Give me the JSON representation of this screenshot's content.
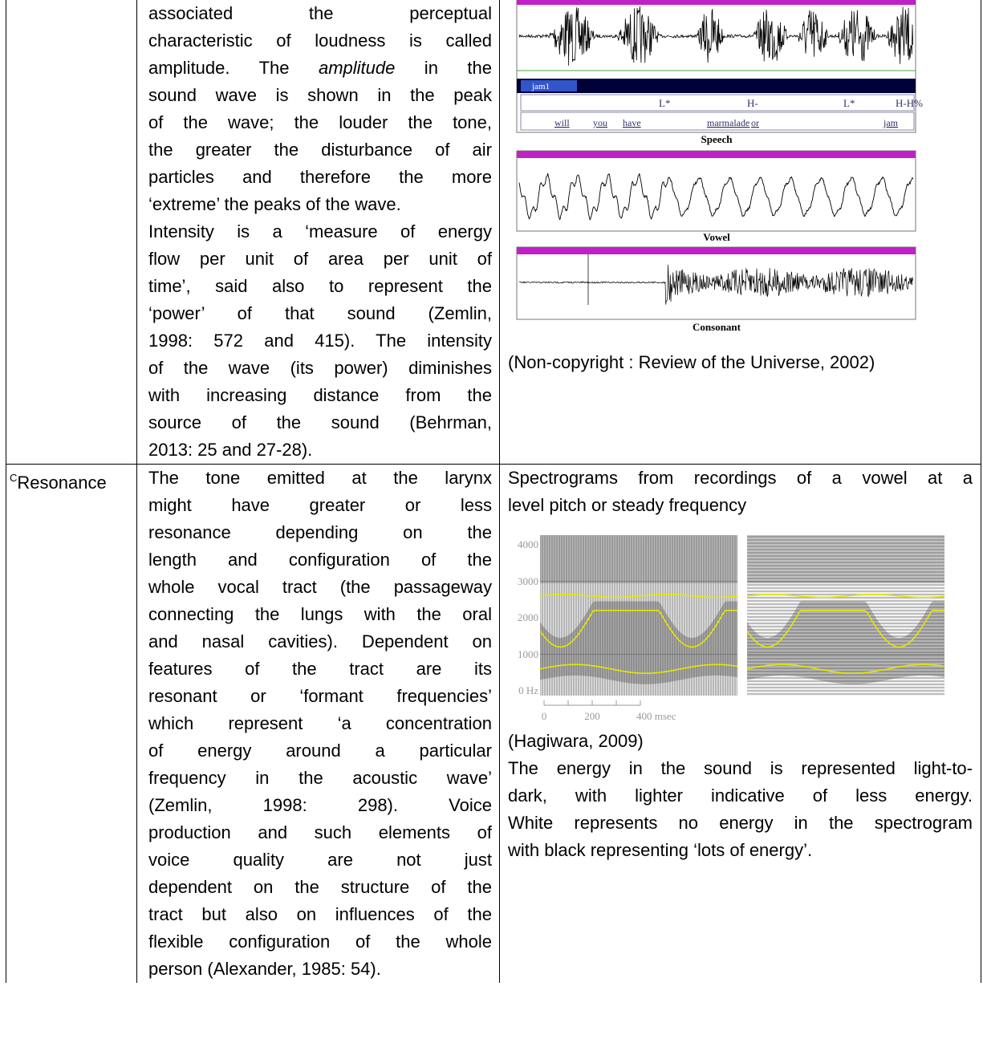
{
  "table": {
    "rows": [
      {
        "description": {
          "paragraphs": [
            [
              "associated the perceptual",
              "characteristic of loudness is called",
              [
                "amplitude. The ",
                "amplitude",
                " in the"
              ],
              "sound wave is shown in the peak",
              "of the wave; the louder the tone,",
              "the greater the disturbance of air",
              "particles and therefore the more",
              "‘extreme’ the peaks of the wave."
            ],
            [
              "Intensity is a ‘measure of energy",
              "flow per unit of area per unit of",
              "time’, said also to represent the",
              "‘power’ of that sound (Zemlin,",
              "1998: 572 and 415). The intensity",
              "of the wave (its power) diminishes",
              "with increasing distance from the",
              "source of the sound (Behrman,",
              "2013: 25 and 27-28)."
            ]
          ]
        },
        "illustration": {
          "tier_name": "jam1",
          "tones": [
            "L*",
            "H-",
            "L*",
            "H-H%"
          ],
          "words": [
            "will",
            "you",
            "have",
            "marmalade",
            "or",
            "jam"
          ],
          "panel_titles": [
            "Speech",
            "Vowel",
            "Consonant"
          ],
          "caption": "(Non-copyright : Review of the Universe, 2002)"
        }
      },
      {
        "term": {
          "superscript": "C",
          "text": "Resonance"
        },
        "description": {
          "paragraphs": [
            [
              "The tone emitted at the larynx",
              "might have greater or less",
              "resonance depending on the",
              "length and configuration of the",
              "whole vocal tract (the passageway",
              "connecting the lungs with the oral",
              "and nasal cavities). Dependent on",
              "features of the tract are its",
              "resonant or ‘formant frequencies’",
              "which represent ‘a concentration",
              "of energy around a particular",
              "frequency in the acoustic wave’",
              "(Zemlin, 1998: 298). Voice",
              "production and such elements of",
              "voice quality are not just",
              "dependent on the structure of the",
              "tract but also on influences of the",
              "flexible configuration of the whole",
              "person (Alexander, 1985: 54)."
            ]
          ]
        },
        "illustration": {
          "intro": [
            "Spectrograms from recordings of a vowel at a",
            "level pitch or steady frequency"
          ],
          "spectrogram": {
            "y_labels": [
              "4000",
              "3000",
              "2000",
              "1000",
              "0 Hz"
            ],
            "x_labels": [
              "0",
              "200",
              "400 msec"
            ]
          },
          "source": "(Hagiwara, 2009)",
          "note": [
            "The energy in the sound is represented light-to-",
            "dark, with lighter indicative of less energy.",
            "White represents no energy in the spectrogram",
            "with black representing ‘lots of energy’."
          ]
        }
      }
    ]
  }
}
